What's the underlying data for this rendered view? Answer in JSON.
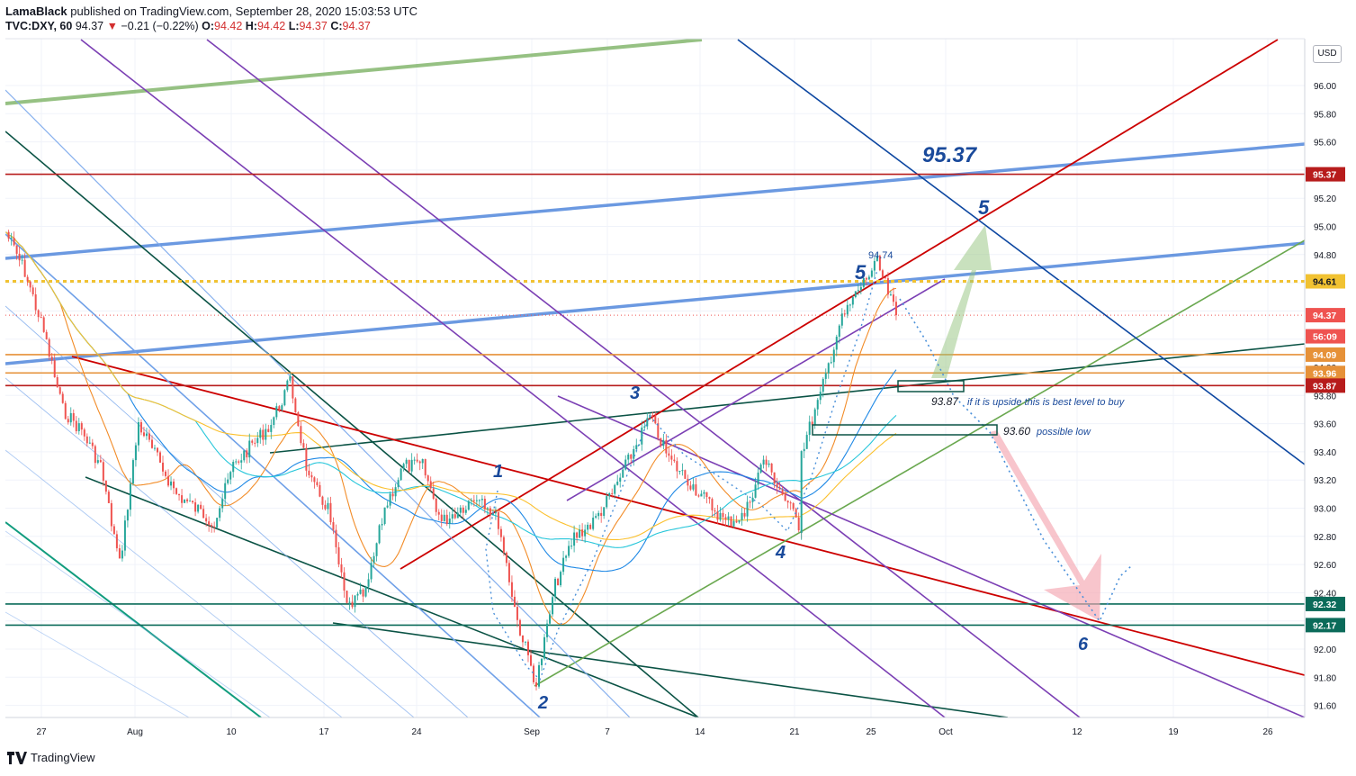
{
  "header": {
    "author": "LamaBlack",
    "published_text": "published on TradingView.com, September 28, 2020 15:03:53 UTC",
    "symbol": "TVC:DXY, 60",
    "last": "94.37",
    "change": "−0.21 (−0.22%)",
    "o_label": "O:",
    "o": "94.42",
    "h_label": "H:",
    "h": "94.42",
    "l_label": "L:",
    "l": "94.37",
    "c_label": "C:",
    "c": "94.37"
  },
  "footer": {
    "brand": "TradingView"
  },
  "currency": "USD",
  "colors": {
    "red": "#cc0000",
    "blue": "#5b8ede",
    "green": "#6aa84f",
    "darkgreen": "#0b5345",
    "purple": "#7b3fb4",
    "navy": "#0d47a1",
    "orange": "#f29a30",
    "gold": "#f1c232",
    "label_navy": "#1a4a9b"
  },
  "chart_data": {
    "type": "line",
    "title": "",
    "xlabel": "",
    "ylabel": "",
    "ylim": [
      91.44,
      96.24
    ],
    "y_ticks": [
      91.6,
      91.8,
      92.0,
      92.2,
      92.4,
      92.6,
      92.8,
      93.0,
      93.2,
      93.4,
      93.6,
      93.8,
      94.0,
      94.2,
      94.4,
      94.6,
      94.8,
      95.0,
      95.2,
      95.4,
      95.6,
      95.8,
      96.0
    ],
    "x_ticks": [
      "27",
      "Aug",
      "10",
      "17",
      "24",
      "Sep",
      "7",
      "14",
      "21",
      "25",
      "Oct",
      "12",
      "19",
      "26"
    ],
    "price_levels": [
      {
        "label": "95.37",
        "value": 95.37,
        "color": "#b71c1c",
        "style": "solid"
      },
      {
        "label": "94.61",
        "value": 94.61,
        "color": "#f1c232",
        "style": "dotted"
      },
      {
        "label": "94.37",
        "value": 94.37,
        "color": "#ef5350",
        "style": "dotted"
      },
      {
        "label": "56:09",
        "value": 94.22,
        "color": "#ef5350",
        "style": "none"
      },
      {
        "label": "94.09",
        "value": 94.09,
        "color": "#e69138",
        "style": "solid"
      },
      {
        "label": "93.96",
        "value": 93.96,
        "color": "#e69138",
        "style": "solid"
      },
      {
        "label": "93.87",
        "value": 93.87,
        "color": "#b71c1c",
        "style": "solid"
      },
      {
        "label": "92.32",
        "value": 92.32,
        "color": "#0b6b5a",
        "style": "solid"
      },
      {
        "label": "92.17",
        "value": 92.17,
        "color": "#0b6b5a",
        "style": "solid"
      }
    ],
    "annotations": [
      {
        "text": "95.37",
        "kind": "big"
      },
      {
        "text": "5",
        "kind": "wave"
      },
      {
        "text": "5",
        "kind": "wave"
      },
      {
        "text": "94.74",
        "kind": "small"
      },
      {
        "text": "3",
        "kind": "wave"
      },
      {
        "text": "1",
        "kind": "wave"
      },
      {
        "text": "4",
        "kind": "wave"
      },
      {
        "text": "2",
        "kind": "wave"
      },
      {
        "text": "6",
        "kind": "wave"
      },
      {
        "text": "93.87",
        "kind": "note"
      },
      {
        "text": "if it is upside this is best level to buy",
        "kind": "note"
      },
      {
        "text": "93.60",
        "kind": "note"
      },
      {
        "text": "possible low",
        "kind": "note"
      }
    ],
    "price_path": [
      {
        "x": "Jul 23",
        "y": 94.96
      },
      {
        "x": "Jul 24",
        "y": 94.68
      },
      {
        "x": "Jul 27",
        "y": 94.25
      },
      {
        "x": "Jul 28",
        "y": 93.7
      },
      {
        "x": "Jul 29",
        "y": 93.55
      },
      {
        "x": "Jul 30",
        "y": 93.3
      },
      {
        "x": "Jul 31",
        "y": 92.6
      },
      {
        "x": "Aug 3",
        "y": 93.6
      },
      {
        "x": "Aug 5",
        "y": 93.1
      },
      {
        "x": "Aug 7",
        "y": 92.9
      },
      {
        "x": "Aug 10",
        "y": 93.3
      },
      {
        "x": "Aug 12",
        "y": 93.6
      },
      {
        "x": "Aug 13",
        "y": 93.9
      },
      {
        "x": "Aug 14",
        "y": 93.2
      },
      {
        "x": "Aug 17",
        "y": 93.0
      },
      {
        "x": "Aug 18",
        "y": 92.3
      },
      {
        "x": "Aug 19",
        "y": 92.4
      },
      {
        "x": "Aug 20",
        "y": 93.0
      },
      {
        "x": "Aug 21",
        "y": 93.3
      },
      {
        "x": "Aug 24",
        "y": 93.3
      },
      {
        "x": "Aug 25",
        "y": 92.9
      },
      {
        "x": "Aug 27",
        "y": 93.1
      },
      {
        "x": "Aug 28",
        "y": 92.9
      },
      {
        "x": "Aug 31",
        "y": 92.2
      },
      {
        "x": "Sep 1",
        "y": 91.75
      },
      {
        "x": "Sep 2",
        "y": 92.45
      },
      {
        "x": "Sep 3",
        "y": 92.8
      },
      {
        "x": "Sep 4",
        "y": 92.9
      },
      {
        "x": "Sep 7",
        "y": 93.1
      },
      {
        "x": "Sep 9",
        "y": 93.65
      },
      {
        "x": "Sep 10",
        "y": 93.35
      },
      {
        "x": "Sep 11",
        "y": 93.2
      },
      {
        "x": "Sep 14",
        "y": 93.05
      },
      {
        "x": "Sep 15",
        "y": 92.9
      },
      {
        "x": "Sep 16",
        "y": 92.95
      },
      {
        "x": "Sep 17",
        "y": 93.35
      },
      {
        "x": "Sep 18",
        "y": 93.1
      },
      {
        "x": "Sep 21",
        "y": 92.85
      },
      {
        "x": "Sep 21",
        "y": 93.4
      },
      {
        "x": "Sep 22",
        "y": 93.8
      },
      {
        "x": "Sep 23",
        "y": 94.3
      },
      {
        "x": "Sep 24",
        "y": 94.55
      },
      {
        "x": "Sep 25",
        "y": 94.74
      },
      {
        "x": "Sep 28",
        "y": 94.37
      }
    ]
  }
}
